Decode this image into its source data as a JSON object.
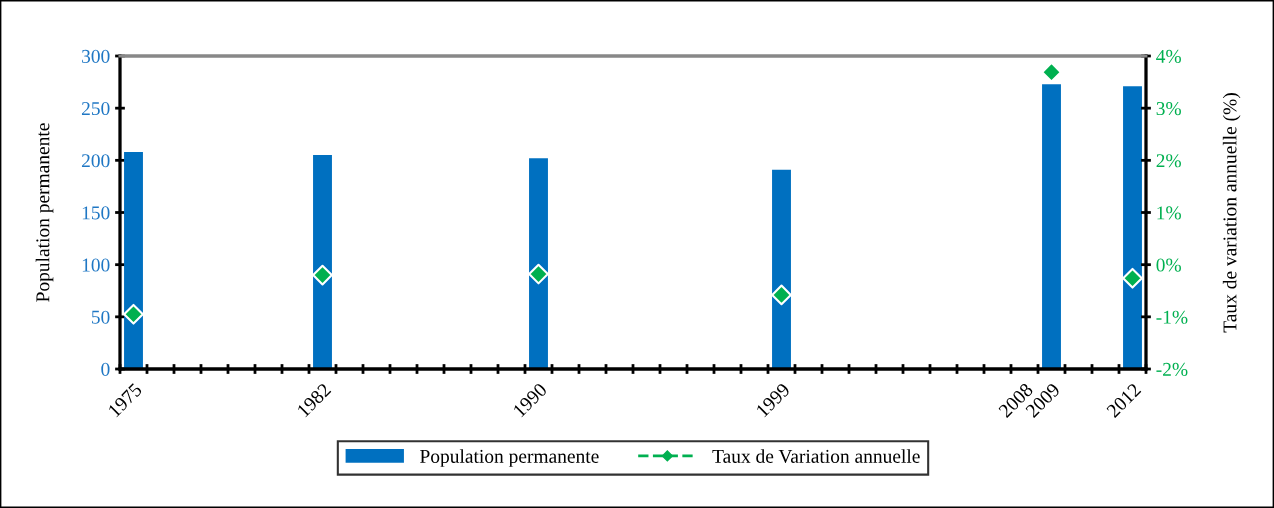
{
  "chart_data": {
    "type": "bar",
    "categories": [
      "1975",
      null,
      null,
      null,
      null,
      null,
      null,
      "1982",
      null,
      null,
      null,
      null,
      null,
      null,
      null,
      "1990",
      null,
      null,
      null,
      null,
      null,
      null,
      null,
      null,
      "1999",
      null,
      null,
      null,
      null,
      null,
      null,
      null,
      null,
      "2008",
      "2009",
      null,
      null,
      "2012"
    ],
    "series": [
      {
        "name": "Population permanente",
        "color": "#0070c0",
        "values": [
          208,
          null,
          null,
          null,
          null,
          null,
          null,
          205,
          null,
          null,
          null,
          null,
          null,
          null,
          null,
          202,
          null,
          null,
          null,
          null,
          null,
          null,
          null,
          null,
          191,
          null,
          null,
          null,
          null,
          null,
          null,
          null,
          null,
          null,
          273,
          null,
          null,
          271
        ]
      },
      {
        "name": "Taux de Variation annuelle",
        "type": "scatter",
        "axis": "y2",
        "color": "#00b050",
        "marker": "diamond",
        "line_style": "dashed",
        "values": [
          -0.95,
          null,
          null,
          null,
          null,
          null,
          null,
          -0.2,
          null,
          null,
          null,
          null,
          null,
          null,
          null,
          -0.18,
          null,
          null,
          null,
          null,
          null,
          null,
          null,
          null,
          -0.58,
          null,
          null,
          null,
          null,
          null,
          null,
          null,
          null,
          null,
          3.69,
          null,
          null,
          -0.26
        ]
      }
    ],
    "ylabel": "Population permanente",
    "y2label": "Taux de variation annuelle (%)",
    "ylim": [
      0,
      300
    ],
    "yticks": [
      0,
      50,
      100,
      150,
      200,
      250,
      300
    ],
    "y2lim": [
      -2,
      4
    ],
    "y2ticks": [
      {
        "value": -2,
        "label": "-2%"
      },
      {
        "value": -1,
        "label": "-1%"
      },
      {
        "value": 0,
        "label": "0%"
      },
      {
        "value": 1,
        "label": "1%"
      },
      {
        "value": 2,
        "label": "2%"
      },
      {
        "value": 3,
        "label": "3%"
      },
      {
        "value": 4,
        "label": "4%"
      }
    ],
    "grid": false,
    "legend": "bottom"
  }
}
